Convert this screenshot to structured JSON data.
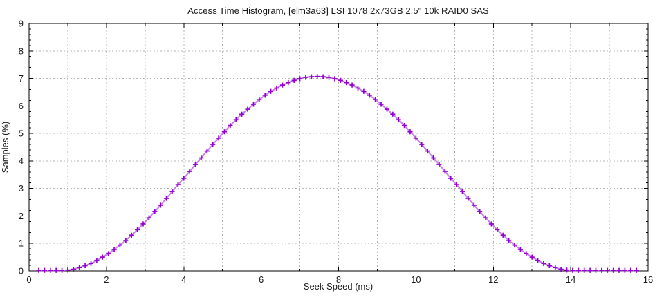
{
  "chart_data": {
    "type": "line",
    "title": "Access Time Histogram, [elm3a63] LSI 1078 2x73GB 2.5\" 10k RAID0 SAS",
    "xlabel": "Seek Speed (ms)",
    "ylabel": "Samples (%)",
    "xlim": [
      0,
      16
    ],
    "ylim": [
      0,
      9
    ],
    "xticks_major": [
      0,
      2,
      4,
      6,
      8,
      10,
      12,
      14,
      16
    ],
    "xticks_minor": [
      1,
      3,
      5,
      7,
      9,
      11,
      13,
      15
    ],
    "yticks_major": [
      0,
      1,
      2,
      3,
      4,
      5,
      6,
      7,
      8,
      9
    ],
    "ytick_minor_step": 0.2,
    "grid": true,
    "legend": "none",
    "style": {
      "background_color": "#ffffff",
      "border_color": "#000000",
      "grid_color": "#b5b5b5",
      "grid_dash": "2 3",
      "line_color": "#c87ce8",
      "marker_color": "#9400d3",
      "marker": "plus"
    },
    "series": [
      {
        "name": "samples",
        "x": [
          0.25,
          0.4,
          0.55,
          0.7,
          0.85,
          1.0,
          1.15,
          1.3,
          1.45,
          1.6,
          1.75,
          1.9,
          2.05,
          2.2,
          2.35,
          2.5,
          2.65,
          2.8,
          2.95,
          3.1,
          3.25,
          3.4,
          3.55,
          3.7,
          3.85,
          4.0,
          4.15,
          4.3,
          4.45,
          4.6,
          4.75,
          4.9,
          5.05,
          5.2,
          5.35,
          5.5,
          5.65,
          5.8,
          5.95,
          6.1,
          6.25,
          6.4,
          6.55,
          6.7,
          6.85,
          7.0,
          7.15,
          7.3,
          7.45,
          7.6,
          7.75,
          7.9,
          8.05,
          8.2,
          8.35,
          8.5,
          8.65,
          8.8,
          8.95,
          9.1,
          9.25,
          9.4,
          9.55,
          9.7,
          9.85,
          10.0,
          10.15,
          10.3,
          10.45,
          10.6,
          10.75,
          10.9,
          11.05,
          11.2,
          11.35,
          11.5,
          11.65,
          11.8,
          11.95,
          12.1,
          12.25,
          12.4,
          12.55,
          12.7,
          12.85,
          13.0,
          13.15,
          13.3,
          13.45,
          13.6,
          13.75,
          13.9,
          14.05,
          14.2,
          14.35,
          14.5,
          14.65,
          14.8,
          14.95,
          15.1,
          15.25,
          15.4,
          15.55,
          15.7
        ],
        "y": [
          0.02,
          0.02,
          0.02,
          0.02,
          0.02,
          0.03,
          0.06,
          0.12,
          0.19,
          0.27,
          0.38,
          0.5,
          0.63,
          0.78,
          0.94,
          1.11,
          1.3,
          1.5,
          1.71,
          1.93,
          2.16,
          2.39,
          2.64,
          2.89,
          3.14,
          3.37,
          3.62,
          3.87,
          4.11,
          4.36,
          4.6,
          4.83,
          5.06,
          5.29,
          5.5,
          5.7,
          5.88,
          6.06,
          6.23,
          6.39,
          6.53,
          6.65,
          6.76,
          6.85,
          6.93,
          6.99,
          7.04,
          7.06,
          7.07,
          7.06,
          7.04,
          6.99,
          6.93,
          6.85,
          6.76,
          6.65,
          6.53,
          6.39,
          6.23,
          6.06,
          5.88,
          5.7,
          5.5,
          5.29,
          5.06,
          4.83,
          4.6,
          4.36,
          4.11,
          3.87,
          3.62,
          3.37,
          3.14,
          2.89,
          2.64,
          2.39,
          2.16,
          1.93,
          1.71,
          1.5,
          1.3,
          1.11,
          0.94,
          0.78,
          0.63,
          0.5,
          0.38,
          0.27,
          0.19,
          0.12,
          0.06,
          0.03,
          0.02,
          0.02,
          0.02,
          0.02,
          0.02,
          0.02,
          0.02,
          0.02,
          0.02,
          0.02,
          0.02,
          0.02
        ]
      }
    ]
  }
}
